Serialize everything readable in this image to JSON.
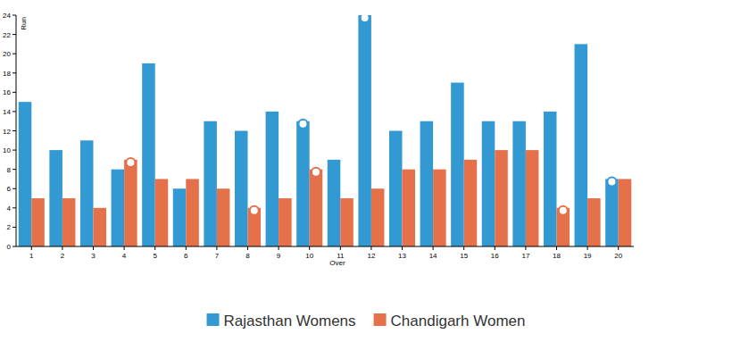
{
  "chart_data": {
    "type": "bar",
    "x_label": "Over",
    "y_label": "Run",
    "categories": [
      "1",
      "2",
      "3",
      "4",
      "5",
      "6",
      "7",
      "8",
      "9",
      "10",
      "11",
      "12",
      "13",
      "14",
      "15",
      "16",
      "17",
      "18",
      "19",
      "20"
    ],
    "series": [
      {
        "name": "Rajasthan Womens",
        "color": "#3399d3",
        "values": [
          15,
          10,
          11,
          8,
          19,
          6,
          13,
          12,
          14,
          13,
          9,
          24,
          12,
          13,
          17,
          13,
          13,
          14,
          21,
          7
        ],
        "wickets": [
          0,
          0,
          0,
          0,
          0,
          0,
          0,
          0,
          0,
          1,
          0,
          1,
          0,
          0,
          0,
          0,
          0,
          0,
          0,
          1
        ]
      },
      {
        "name": "Chandigarh Women",
        "color": "#e5714a",
        "values": [
          5,
          5,
          4,
          9,
          7,
          7,
          6,
          4,
          5,
          8,
          5,
          6,
          8,
          8,
          9,
          10,
          10,
          4,
          5,
          7
        ],
        "wickets": [
          0,
          0,
          0,
          1,
          0,
          0,
          0,
          1,
          0,
          1,
          0,
          0,
          0,
          0,
          0,
          0,
          0,
          1,
          0,
          0
        ]
      }
    ],
    "ylim": [
      0,
      24
    ],
    "yticks": [
      0,
      2,
      4,
      6,
      8,
      10,
      12,
      14,
      16,
      18,
      20,
      22,
      24
    ],
    "grid": false,
    "legend": "bottom"
  }
}
